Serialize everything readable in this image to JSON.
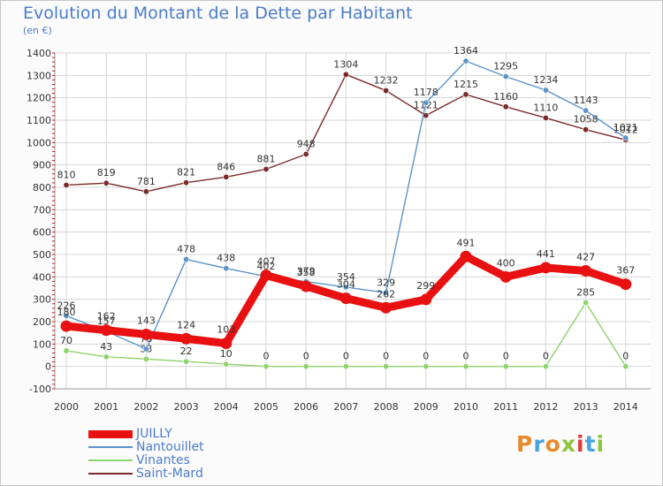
{
  "header": {
    "title": "Evolution du Montant de la Dette par Habitant",
    "subtitle": "(en €)"
  },
  "logo": {
    "text": "Proxiti",
    "colors": [
      "#e8892a",
      "#4aa3df",
      "#e8892a",
      "#8cc63f",
      "#e33b3b",
      "#4aa3df",
      "#8cc63f"
    ]
  },
  "chart_data": {
    "type": "line",
    "categories": [
      "2000",
      "2001",
      "2002",
      "2003",
      "2004",
      "2005",
      "2006",
      "2007",
      "2008",
      "2009",
      "2010",
      "2011",
      "2012",
      "2013",
      "2014"
    ],
    "ylim": [
      -100,
      1400
    ],
    "yticks": [
      -100,
      0,
      100,
      200,
      300,
      400,
      500,
      600,
      700,
      800,
      900,
      1000,
      1100,
      1200,
      1300,
      1400
    ],
    "grid": true,
    "legend": "bottom-left",
    "series": [
      {
        "name": "Saint-Mard",
        "color": "#7a2a2a",
        "values": [
          810,
          819,
          781,
          821,
          846,
          881,
          948,
          1304,
          1232,
          1121,
          1215,
          1160,
          1110,
          1058,
          1012
        ]
      },
      {
        "name": "Vinantes",
        "color": "#8ed36b",
        "values": [
          70,
          43,
          33,
          22,
          10,
          0,
          0,
          0,
          0,
          0,
          0,
          0,
          0,
          285,
          0
        ]
      },
      {
        "name": "Nantouillet",
        "color": "#5b93c9",
        "values": [
          226,
          157,
          78,
          478,
          438,
          402,
          379,
          354,
          329,
          1178,
          1364,
          1295,
          1234,
          1143,
          1021
        ]
      },
      {
        "name": "JUILLY",
        "color": "#e81010",
        "values": [
          180,
          162,
          143,
          124,
          103,
          407,
          358,
          304,
          262,
          299,
          491,
          400,
          441,
          427,
          367
        ]
      }
    ]
  }
}
